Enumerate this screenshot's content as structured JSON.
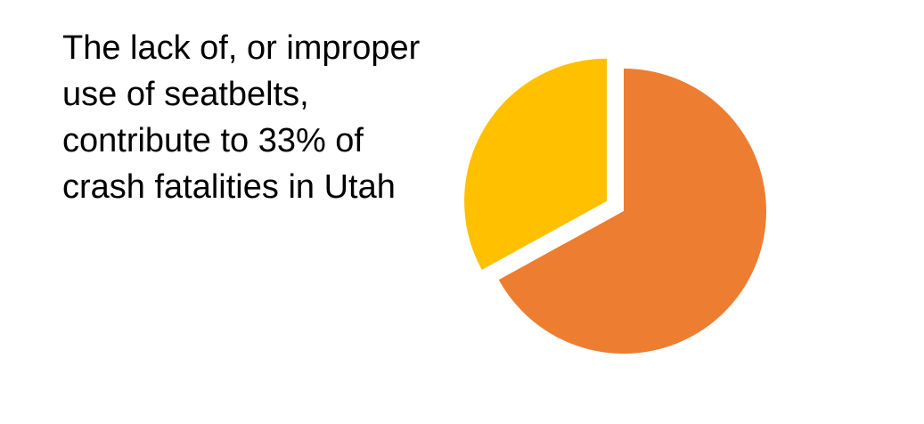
{
  "caption": {
    "lines": [
      "The lack of, or improper",
      "use of seatbelts,",
      "contribute to 33% of",
      "crash fatalities in Utah"
    ]
  },
  "chart_data": {
    "type": "pie",
    "slices": [
      {
        "value": 33,
        "color": "#FFC000",
        "exploded": true
      },
      {
        "value": 67,
        "color": "#ED7D31",
        "exploded": false
      }
    ],
    "start_angle_deg": 0,
    "direction": "counter-clockwise",
    "legend": "none"
  }
}
